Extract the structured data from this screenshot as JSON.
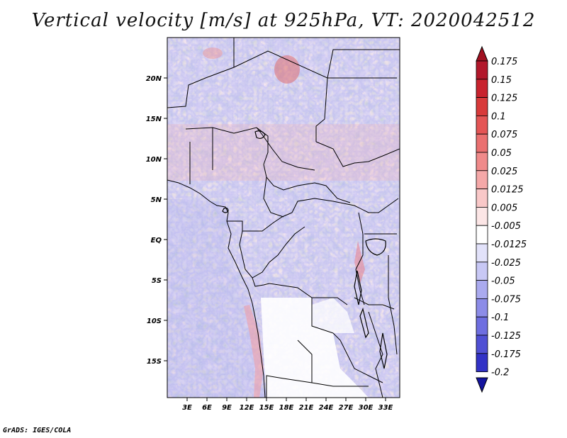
{
  "title": "Vertical velocity [m/s] at 925hPa, VT: 2020042512",
  "credit": "GrADS: IGES/COLA",
  "map": {
    "lat_labels": [
      "20N",
      "15N",
      "10N",
      "5N",
      "EQ",
      "5S",
      "10S",
      "15S"
    ],
    "lon_labels": [
      "3E",
      "6E",
      "9E",
      "12E",
      "15E",
      "18E",
      "21E",
      "24E",
      "27E",
      "30E",
      "33E"
    ]
  },
  "colorbar": {
    "levels": [
      "0.175",
      "0.15",
      "0.125",
      "0.1",
      "0.075",
      "0.05",
      "0.025",
      "0.0125",
      "0.005",
      "-0.005",
      "-0.0125",
      "-0.025",
      "-0.05",
      "-0.075",
      "-0.1",
      "-0.125",
      "-0.175",
      "-0.2"
    ],
    "colors": [
      "#b2182b",
      "#c8232e",
      "#d83a3a",
      "#e45555",
      "#ea7070",
      "#f08a8a",
      "#f5a8a8",
      "#f9c8c8",
      "#fce6e6",
      "#ffffff",
      "#e2e2fa",
      "#c8c8f5",
      "#aaaaef",
      "#8c8ce8",
      "#6e6ee0",
      "#5050d4",
      "#3232c6",
      "#1818b4"
    ],
    "top_arrow_color": "#a01020",
    "bottom_arrow_color": "#14149e"
  }
}
